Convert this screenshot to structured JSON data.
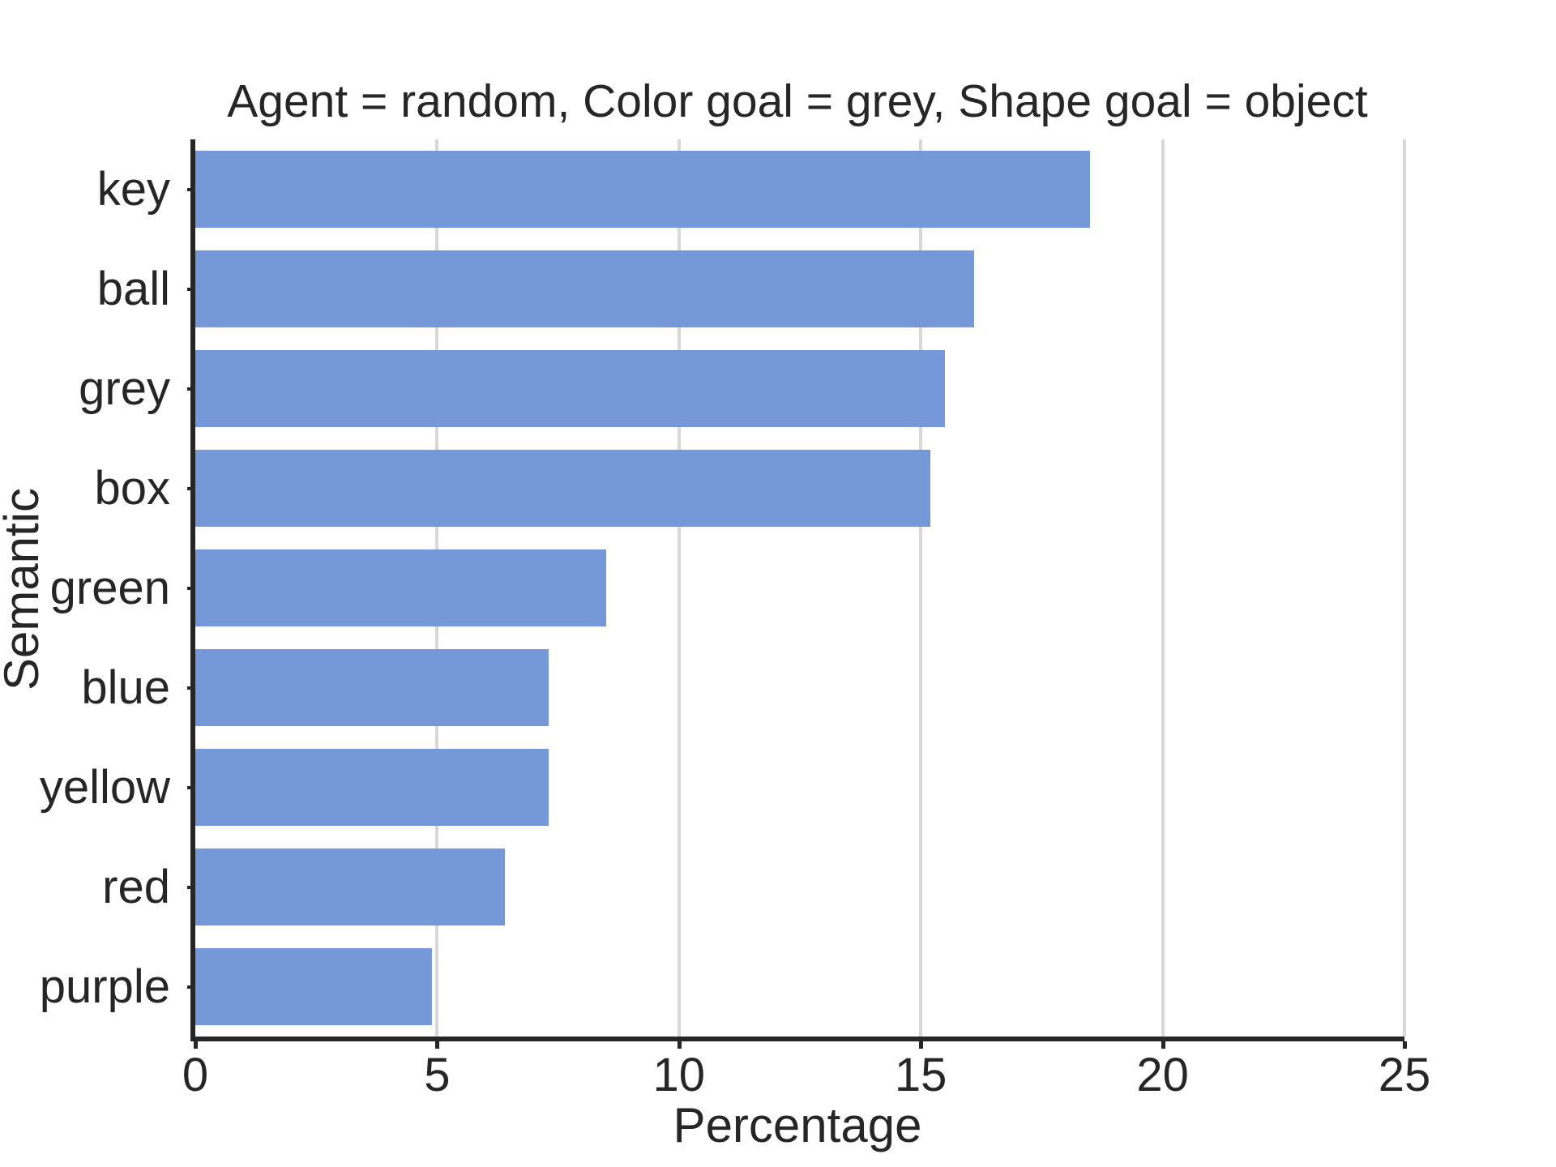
{
  "chart_data": {
    "type": "bar",
    "orientation": "horizontal",
    "title": "Agent = random, Color goal = grey, Shape goal = object",
    "xlabel": "Percentage",
    "ylabel": "Semantic",
    "categories": [
      "key",
      "ball",
      "grey",
      "box",
      "green",
      "blue",
      "yellow",
      "red",
      "purple"
    ],
    "values": [
      18.5,
      16.1,
      15.5,
      15.2,
      8.5,
      7.3,
      7.3,
      6.4,
      4.9
    ],
    "xlim": [
      0,
      25
    ],
    "xticks": [
      0,
      5,
      10,
      15,
      20,
      25
    ],
    "grid": true,
    "grid_axis": "x",
    "legend": false,
    "colors": {
      "bar": "#7598d9",
      "gridline": "#d8d8d8",
      "text": "#262626",
      "spine": "#262626",
      "background": "#ffffff"
    }
  }
}
